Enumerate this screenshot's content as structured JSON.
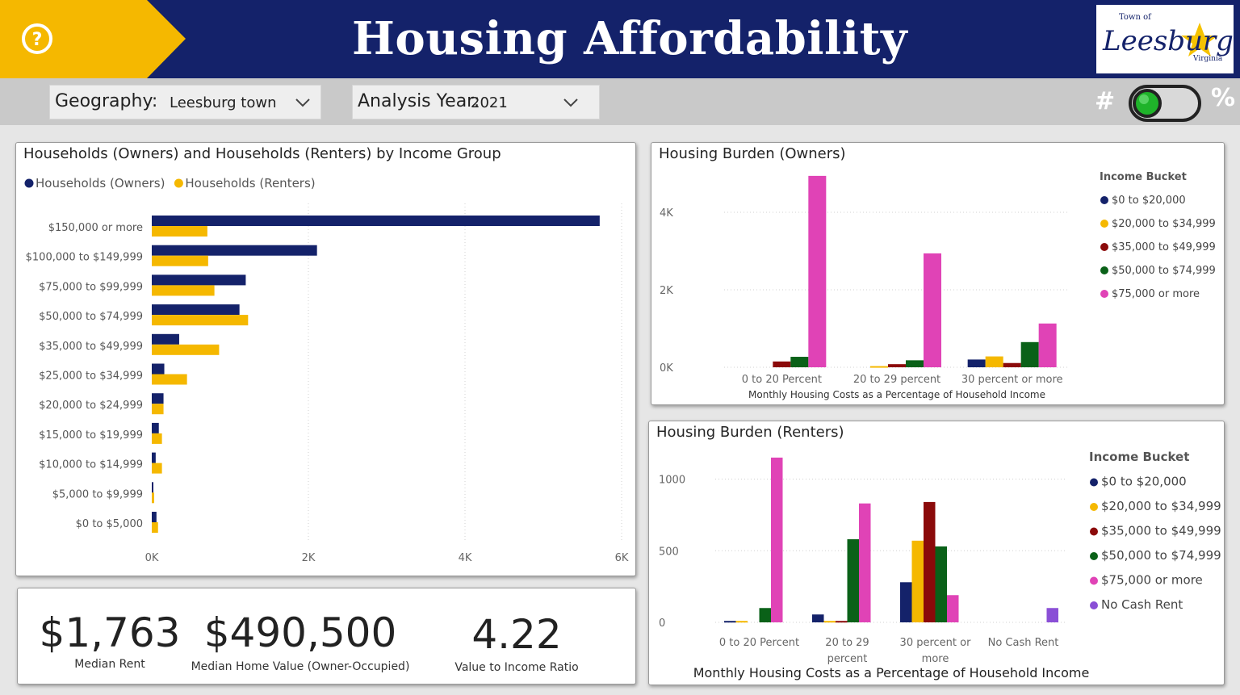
{
  "header": {
    "title": "Housing Affordability",
    "logo_text": {
      "top": "Town of",
      "name": "Leesburg",
      "bottom": "Virginia"
    }
  },
  "filters": {
    "geography": {
      "label": "Geography:",
      "value": "Leesburg town"
    },
    "year": {
      "label": "Analysis Year:",
      "value": "2021"
    }
  },
  "toggle": {
    "left_label": "#",
    "right_label": "%",
    "state_on": true
  },
  "colors": {
    "navy": "#14226a",
    "gold": "#f5b800",
    "maroon": "#8b0a0a",
    "green": "#0a6118",
    "pink": "#e043b6",
    "purple": "#8a4fd6"
  },
  "kpis": [
    {
      "value": "$1,763",
      "label": "Median Rent"
    },
    {
      "value": "$490,500",
      "label": "Median Home Value (Owner-Occupied)"
    },
    {
      "value": "4.22",
      "label": "Value to Income Ratio"
    }
  ],
  "chart_income": {
    "title": "Households (Owners) and Households (Renters) by Income Group",
    "type": "bar",
    "categories": [
      "$150,000 or more",
      "$100,000 to $149,999",
      "$75,000 to $99,999",
      "$50,000 to $74,999",
      "$35,000 to $49,999",
      "$25,000 to $34,999",
      "$20,000 to $24,999",
      "$15,000 to $19,999",
      "$10,000 to $14,999",
      "$5,000 to $9,999",
      "$0 to $5,000"
    ],
    "series": [
      {
        "name": "Households (Owners)",
        "color": "#14226a",
        "values": [
          5720,
          2110,
          1200,
          1120,
          350,
          160,
          150,
          90,
          50,
          20,
          60
        ]
      },
      {
        "name": "Households (Renters)",
        "color": "#f5b800",
        "values": [
          710,
          720,
          800,
          1230,
          860,
          450,
          150,
          130,
          130,
          30,
          80
        ]
      }
    ],
    "xlim": [
      0,
      6000
    ],
    "xticks": [
      "0K",
      "2K",
      "4K",
      "6K"
    ]
  },
  "chart_owners": {
    "title": "Housing Burden (Owners)",
    "type": "bar",
    "xlabel": "Monthly Housing Costs as a Percentage of Household Income",
    "categories": [
      "0 to 20 Percent",
      "20 to 29 percent",
      "30 percent or more"
    ],
    "legend_title": "Income Bucket",
    "series": [
      {
        "name": "$0 to $20,000",
        "color": "#14226a",
        "values": [
          0,
          0,
          200
        ]
      },
      {
        "name": "$20,000 to $34,999",
        "color": "#f5b800",
        "values": [
          0,
          30,
          280
        ]
      },
      {
        "name": "$35,000 to $49,999",
        "color": "#8b0a0a",
        "values": [
          150,
          80,
          110
        ]
      },
      {
        "name": "$50,000 to $74,999",
        "color": "#0a6118",
        "values": [
          270,
          180,
          650
        ]
      },
      {
        "name": "$75,000 or more",
        "color": "#e043b6",
        "values": [
          4940,
          2940,
          1130
        ]
      }
    ],
    "ylim": [
      0,
      5000
    ],
    "yticks": [
      {
        "v": 0,
        "t": "0K"
      },
      {
        "v": 2000,
        "t": "2K"
      },
      {
        "v": 4000,
        "t": "4K"
      }
    ]
  },
  "chart_renters": {
    "title": "Housing Burden (Renters)",
    "type": "bar",
    "xlabel": "Monthly Housing Costs as a Percentage of Household Income",
    "categories": [
      "0 to 20 Percent",
      "20 to 29 percent",
      "30 percent or more",
      "No Cash Rent"
    ],
    "legend_title": "Income Bucket",
    "series": [
      {
        "name": "$0 to $20,000",
        "color": "#14226a",
        "values": [
          10,
          55,
          280,
          0
        ]
      },
      {
        "name": "$20,000 to $34,999",
        "color": "#f5b800",
        "values": [
          10,
          10,
          570,
          0
        ]
      },
      {
        "name": "$35,000 to $49,999",
        "color": "#8b0a0a",
        "values": [
          0,
          10,
          840,
          0
        ]
      },
      {
        "name": "$50,000 to $74,999",
        "color": "#0a6118",
        "values": [
          100,
          580,
          530,
          0
        ]
      },
      {
        "name": "$75,000 or more",
        "color": "#e043b6",
        "values": [
          1150,
          830,
          190,
          0
        ]
      },
      {
        "name": "No Cash Rent",
        "color": "#8a4fd6",
        "values": [
          0,
          0,
          0,
          100
        ]
      }
    ],
    "ylim": [
      0,
      1200
    ],
    "yticks": [
      {
        "v": 0,
        "t": "0"
      },
      {
        "v": 500,
        "t": "500"
      },
      {
        "v": 1000,
        "t": "1000"
      }
    ]
  }
}
